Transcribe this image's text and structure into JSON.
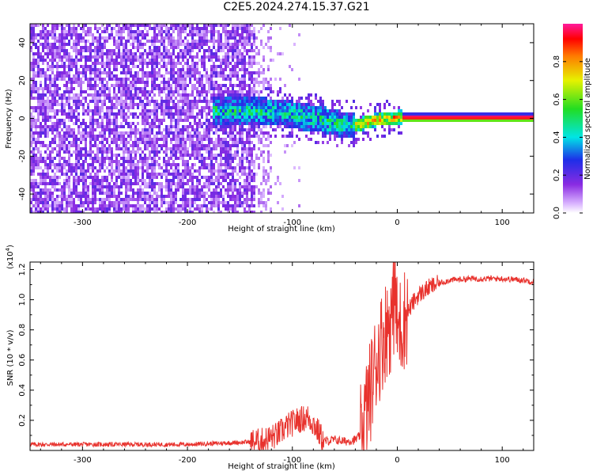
{
  "title": "C2E5.2024.274.15.37.G21",
  "chart_data": [
    {
      "type": "heatmap",
      "title": "C2E5.2024.274.15.37.G21",
      "xlabel": "Height of straight line (km)",
      "ylabel": "Frequency (Hz)",
      "xlim": [
        -350,
        130
      ],
      "ylim": [
        -50,
        50
      ],
      "x_ticks": [
        -300,
        -200,
        -100,
        0,
        100
      ],
      "y_ticks": [
        -40,
        -20,
        0,
        20,
        40
      ],
      "colorbar": {
        "label": "Normalized spectral amplitude",
        "range": [
          0,
          1
        ],
        "ticks": [
          "0.0",
          "0.2",
          "0.4",
          "0.6",
          "0.8"
        ]
      },
      "regions": [
        {
          "description_x": [
            -350,
            -135
          ],
          "frequency": [
            -50,
            50
          ],
          "amplitude": "low (~0.05-0.25)"
        },
        {
          "description_x": [
            -175,
            -40
          ],
          "frequency": [
            -10,
            8
          ],
          "amplitude": "medium (~0.3-0.6)"
        },
        {
          "description_x": [
            -45,
            5
          ],
          "frequency": [
            -5,
            3
          ],
          "amplitude": "high (~0.6-0.95)"
        },
        {
          "description_x": [
            5,
            130
          ],
          "frequency": [
            -1,
            1
          ],
          "amplitude": "max (~1.0)"
        }
      ],
      "signal_trace": [
        {
          "x": -130,
          "y": 4
        },
        {
          "x": -110,
          "y": 3
        },
        {
          "x": -90,
          "y": 1
        },
        {
          "x": -70,
          "y": -1
        },
        {
          "x": -55,
          "y": -3
        },
        {
          "x": -45,
          "y": -4
        },
        {
          "x": -35,
          "y": -3
        },
        {
          "x": -20,
          "y": -1
        },
        {
          "x": -10,
          "y": 0
        },
        {
          "x": 0,
          "y": 0.5
        },
        {
          "x": 130,
          "y": 0
        }
      ]
    },
    {
      "type": "line",
      "xlabel": "Height of straight line (km)",
      "ylabel": "SNR (10 * v/v)",
      "y_scale_label": "(x10",
      "y_scale_exp": "4",
      "y_scale_close": ")",
      "xlim": [
        -350,
        130
      ],
      "ylim": [
        0,
        1.25
      ],
      "x_ticks": [
        -300,
        -200,
        -100,
        0,
        100
      ],
      "y_ticks": [
        0.2,
        0.4,
        0.6,
        0.8,
        1.0,
        1.2
      ],
      "series": [
        {
          "color": "#e8322d",
          "x": [
            -350,
            -300,
            -250,
            -200,
            -160,
            -130,
            -115,
            -105,
            -95,
            -85,
            -80,
            -75,
            -70,
            -60,
            -50,
            -40,
            -35,
            -30,
            -25,
            -20,
            -15,
            -10,
            -5,
            -2,
            0,
            5,
            10,
            15,
            20,
            30,
            40,
            50,
            70,
            100,
            120,
            130
          ],
          "y": [
            0.04,
            0.04,
            0.04,
            0.04,
            0.05,
            0.06,
            0.1,
            0.16,
            0.2,
            0.22,
            0.18,
            0.12,
            0.06,
            0.07,
            0.06,
            0.07,
            0.1,
            0.25,
            0.42,
            0.6,
            0.72,
            0.82,
            0.88,
            1.05,
            0.8,
            0.85,
            0.92,
            0.98,
            1.03,
            1.08,
            1.11,
            1.13,
            1.14,
            1.14,
            1.13,
            1.12
          ]
        }
      ]
    }
  ]
}
